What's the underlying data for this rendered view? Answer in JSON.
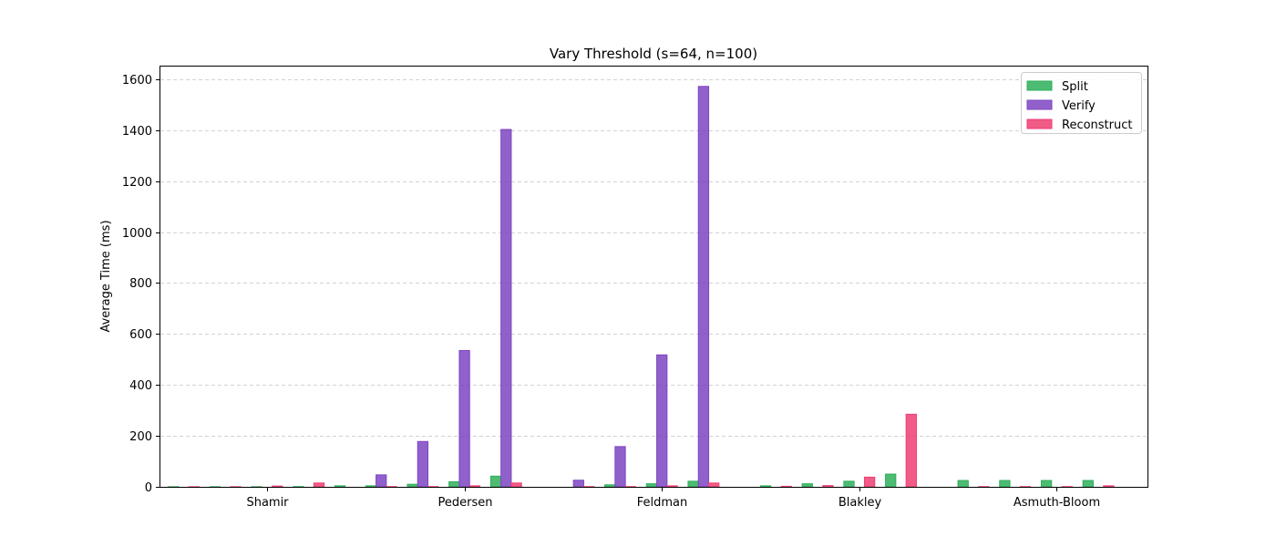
{
  "chart_data": {
    "type": "bar",
    "title": "Vary Threshold (s=64, n=100)",
    "xlabel": "",
    "ylabel": "Average Time (ms)",
    "ylim": [
      0,
      1650
    ],
    "yticks": [
      0,
      200,
      400,
      600,
      800,
      1000,
      1200,
      1400,
      1600
    ],
    "grid": "y-dashed",
    "legend_position": "top-right",
    "categories": [
      "Shamir",
      "Pedersen",
      "Feldman",
      "Blakley",
      "Asmuth-Bloom"
    ],
    "groups_per_category": 5,
    "series": [
      {
        "name": "Split",
        "color": "#2eaf5a",
        "values": [
          [
            0.5,
            0.5,
            0.5,
            1,
            4
          ],
          [
            4,
            10,
            20,
            42,
            0
          ],
          [
            0,
            8,
            12,
            22,
            0
          ],
          [
            4,
            12,
            22,
            50,
            0
          ],
          [
            25,
            25,
            25,
            25,
            0
          ]
        ]
      },
      {
        "name": "Verify",
        "color": "#7e45c2",
        "values": [
          [
            0,
            0,
            0,
            0,
            0
          ],
          [
            47,
            178,
            535,
            1403,
            0
          ],
          [
            26,
            158,
            518,
            1572,
            0
          ],
          [
            0,
            0,
            0,
            0,
            0
          ],
          [
            0,
            0,
            0,
            0,
            0
          ]
        ]
      },
      {
        "name": "Reconstruct",
        "color": "#ef3e72",
        "values": [
          [
            0.5,
            0.5,
            3,
            15,
            0
          ],
          [
            1,
            1,
            4,
            15,
            0
          ],
          [
            1,
            1,
            4,
            15,
            0
          ],
          [
            2,
            5,
            38,
            285,
            0
          ],
          [
            1,
            1,
            1,
            4,
            0
          ]
        ]
      }
    ]
  }
}
